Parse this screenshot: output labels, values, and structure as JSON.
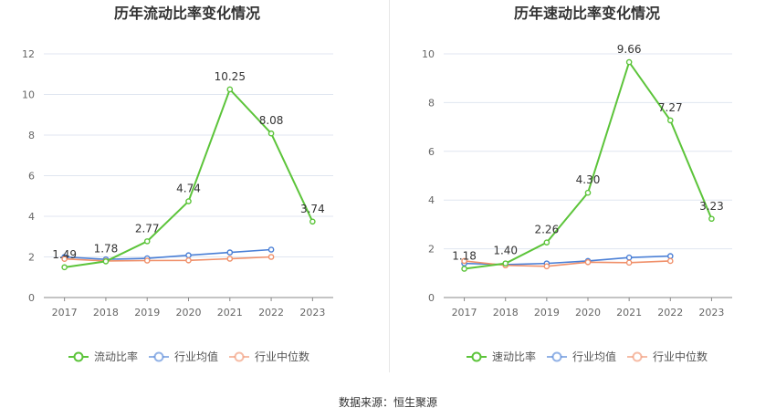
{
  "colors": {
    "main": "#5cc43a",
    "avg": "#4a7fd6",
    "median": "#f0906a",
    "grid": "#e0e6f0",
    "axis": "#666666",
    "label": "#333333"
  },
  "source_text": "数据来源：恒生聚源",
  "chart_data": [
    {
      "type": "line",
      "title": "历年流动比率变化情况",
      "x": [
        "2017",
        "2018",
        "2019",
        "2020",
        "2021",
        "2022",
        "2023"
      ],
      "ylim": [
        0,
        12
      ],
      "yticks": [
        "0",
        "2",
        "4",
        "6",
        "8",
        "10",
        "12"
      ],
      "grid": true,
      "legend_position": "bottom",
      "series": [
        {
          "name": "流动比率",
          "values": [
            1.49,
            1.78,
            2.77,
            4.74,
            10.25,
            8.08,
            3.74
          ],
          "labels": [
            "1.49",
            "1.78",
            "2.77",
            "4.74",
            "10.25",
            "8.08",
            "3.74"
          ]
        },
        {
          "name": "行业均值",
          "values": [
            2.0,
            1.88,
            1.93,
            2.08,
            2.22,
            2.36,
            null
          ]
        },
        {
          "name": "行业中位数",
          "values": [
            1.9,
            1.8,
            1.82,
            1.83,
            1.91,
            2.0,
            null
          ]
        }
      ]
    },
    {
      "type": "line",
      "title": "历年速动比率变化情况",
      "x": [
        "2017",
        "2018",
        "2019",
        "2020",
        "2021",
        "2022",
        "2023"
      ],
      "ylim": [
        0,
        10
      ],
      "yticks": [
        "0",
        "2",
        "4",
        "6",
        "8",
        "10"
      ],
      "grid": true,
      "legend_position": "bottom",
      "series": [
        {
          "name": "速动比率",
          "values": [
            1.18,
            1.4,
            2.26,
            4.3,
            9.66,
            7.27,
            3.23
          ],
          "labels": [
            "1.18",
            "1.40",
            "2.26",
            "4.30",
            "9.66",
            "7.27",
            "3.23"
          ]
        },
        {
          "name": "行业均值",
          "values": [
            1.4,
            1.35,
            1.4,
            1.5,
            1.64,
            1.7,
            null
          ]
        },
        {
          "name": "行业中位数",
          "values": [
            1.5,
            1.32,
            1.28,
            1.45,
            1.43,
            1.5,
            null
          ]
        }
      ]
    }
  ]
}
